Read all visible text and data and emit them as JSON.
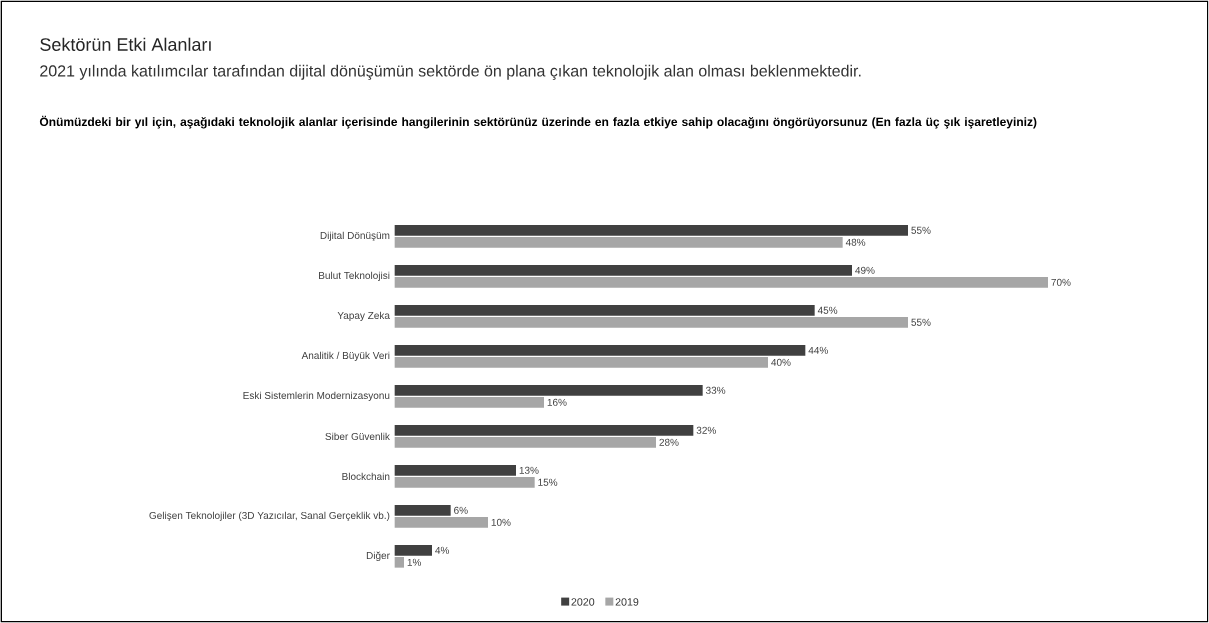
{
  "chart_data": {
    "type": "bar",
    "orientation": "horizontal",
    "title": "Sektörün Etki Alanları",
    "subtitle": "2021 yılında katılımcılar tarafından dijital dönüşümün sektörde ön plana çıkan teknolojik alan olması beklenmektedir.",
    "annotations": [
      "Önümüzdeki bir yıl için, aşağıdaki teknolojik alanlar içerisinde hangilerinin sektörünüz üzerinde en fazla etkiye sahip olacağını öngörüyorsunuz (En fazla üç şık işaretleyiniz)"
    ],
    "categories": [
      "Dijital Dönüşüm",
      "Bulut Teknolojisi",
      "Yapay Zeka",
      "Analitik / Büyük Veri",
      "Eski Sistemlerin Modernizasyonu",
      "Siber Güvenlik",
      "Blockchain",
      "Gelişen Teknolojiler (3D Yazıcılar, Sanal Gerçeklik vb.)",
      "Diğer"
    ],
    "series": [
      {
        "name": "2020",
        "color": "#404040",
        "values": [
          55,
          49,
          45,
          44,
          33,
          32,
          13,
          6,
          4
        ],
        "value_labels": [
          "55%",
          "49%",
          "45%",
          "44%",
          "33%",
          "32%",
          "13%",
          "6%",
          "4%"
        ]
      },
      {
        "name": "2019",
        "color": "#a6a6a6",
        "values": [
          48,
          70,
          55,
          40,
          16,
          28,
          15,
          10,
          1
        ],
        "value_labels": [
          "48%",
          "70%",
          "55%",
          "40%",
          "16%",
          "28%",
          "15%",
          "10%",
          "1%"
        ]
      }
    ],
    "legend": "bottom"
  }
}
